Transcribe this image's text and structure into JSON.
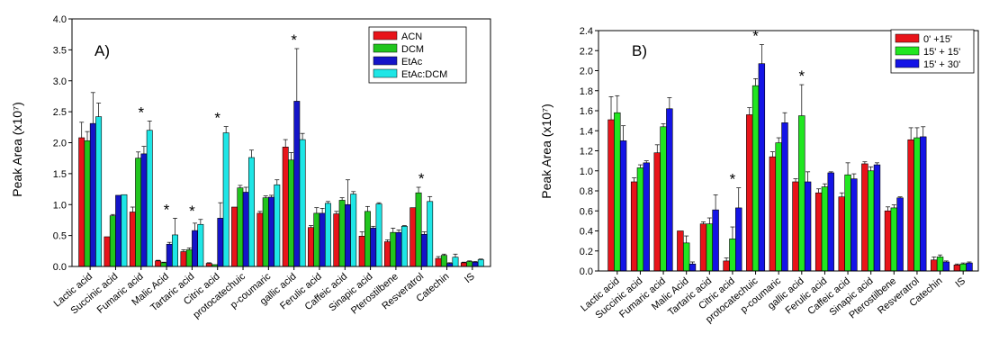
{
  "chart_data": [
    {
      "type": "bar",
      "title": "A)",
      "ylabel": "Peak Area (x10⁷)",
      "xlabel": "",
      "ylim": [
        0,
        4.0
      ],
      "yticks": [
        "0.0",
        "0.5",
        "1.0",
        "1.5",
        "2.0",
        "2.5",
        "3.0",
        "3.5",
        "4.0"
      ],
      "grid": false,
      "legend_position": "top-right",
      "categories": [
        "Lactic acid",
        "Succinic acid",
        "Fumaric acid",
        "Malic Acid",
        "Tartaric acid",
        "Citric acid",
        "protocatechuic",
        "p-coumaric",
        "gallic acid",
        "Ferulic acid",
        "Caffeic acid",
        "Sinapic acid",
        "Pterostilbene",
        "Resveratrol",
        "Catechin",
        "IS"
      ],
      "series": [
        {
          "name": "ACN",
          "color": "#e8141a",
          "values": [
            2.08,
            0.48,
            0.88,
            0.09,
            0.24,
            0.05,
            0.96,
            0.86,
            1.93,
            0.63,
            0.85,
            0.49,
            0.4,
            0.95,
            0.13,
            0.06
          ],
          "errors": [
            0.25,
            0,
            0.08,
            0.01,
            0.03,
            0.01,
            0,
            0.03,
            0.12,
            0.03,
            0.04,
            0.07,
            0.03,
            0,
            0.03,
            0.01
          ]
        },
        {
          "name": "DCM",
          "color": "#21c51e",
          "values": [
            2.03,
            0.82,
            1.75,
            0.06,
            0.27,
            0.03,
            1.27,
            1.11,
            1.72,
            0.86,
            1.07,
            0.89,
            0.55,
            1.19,
            0.18,
            0.08
          ],
          "errors": [
            0.15,
            0.02,
            0.1,
            0.01,
            0.03,
            0,
            0.04,
            0.03,
            0.12,
            0.09,
            0.04,
            0.08,
            0.07,
            0.09,
            0.02,
            0.01
          ]
        },
        {
          "name": "EtAc",
          "color": "#1414c8",
          "values": [
            2.31,
            1.15,
            1.82,
            0.36,
            0.58,
            0.78,
            1.2,
            1.12,
            2.67,
            0.86,
            1.0,
            0.62,
            0.55,
            0.52,
            0.05,
            0.07
          ],
          "errors": [
            0.5,
            0,
            0.12,
            0.03,
            0.12,
            0.25,
            0.08,
            0.03,
            0.85,
            0.08,
            0.4,
            0.03,
            0.04,
            0.04,
            0.01,
            0.01
          ]
        },
        {
          "name": "EtAc:DCM",
          "color": "#1ee6e6",
          "values": [
            2.42,
            1.16,
            2.2,
            0.51,
            0.68,
            2.16,
            1.76,
            1.32,
            2.05,
            1.02,
            1.17,
            1.01,
            0.65,
            1.05,
            0.15,
            0.11
          ],
          "errors": [
            0.22,
            0,
            0.15,
            0.27,
            0.08,
            0.1,
            0.12,
            0.08,
            0.1,
            0.03,
            0.04,
            0.02,
            0.01,
            0.08,
            0.05,
            0.01
          ]
        }
      ],
      "annotations": [
        {
          "category": "Fumaric acid",
          "text": "*"
        },
        {
          "category": "Tartaric acid",
          "text": "*"
        },
        {
          "category": "Citric acid",
          "text": "*"
        },
        {
          "category": "gallic acid",
          "text": "*"
        },
        {
          "category": "Resveratrol",
          "text": "*"
        },
        {
          "category": "Malic Acid",
          "text": "*"
        }
      ]
    },
    {
      "type": "bar",
      "title": "B)",
      "ylabel": "Peak Area (x10⁷)",
      "xlabel": "",
      "ylim": [
        0,
        2.4
      ],
      "yticks": [
        "0.0",
        "0.2",
        "0.4",
        "0.6",
        "0.8",
        "1.0",
        "1.2",
        "1.4",
        "1.6",
        "1.8",
        "2.0",
        "2.2",
        "2.4"
      ],
      "grid": false,
      "legend_position": "top-right",
      "categories": [
        "Lactic acid",
        "Succinic acid",
        "Fumaric acid",
        "Malic Acid",
        "Tartaric acid",
        "Citric acid",
        "protocatechuic",
        "p-coumaric",
        "gallic acid",
        "Ferulic acid",
        "Caffeic acid",
        "Sinapic acid",
        "Pterostilbene",
        "Resveratrol",
        "Catechin",
        "IS"
      ],
      "series": [
        {
          "name": "0' +15'",
          "color": "#e8141a",
          "values": [
            1.51,
            0.89,
            1.18,
            0.4,
            0.47,
            0.1,
            1.56,
            1.14,
            0.89,
            0.78,
            0.74,
            1.07,
            0.6,
            1.31,
            0.11,
            0.06
          ],
          "errors": [
            0.23,
            0.04,
            0.08,
            0,
            0.02,
            0.03,
            0.07,
            0.05,
            0.03,
            0.04,
            0.04,
            0.02,
            0.04,
            0.12,
            0.03,
            0.01
          ]
        },
        {
          "name": "15' + 15'",
          "color": "#21e621",
          "values": [
            1.58,
            1.03,
            1.44,
            0.28,
            0.47,
            0.32,
            1.85,
            1.28,
            1.55,
            0.84,
            0.96,
            1.0,
            0.63,
            1.33,
            0.14,
            0.07
          ],
          "errors": [
            0.17,
            0.03,
            0.03,
            0.07,
            0.06,
            0.12,
            0.07,
            0.05,
            0.31,
            0.03,
            0.12,
            0.04,
            0.03,
            0.1,
            0.02,
            0.01
          ]
        },
        {
          "name": "15' + 30'",
          "color": "#1414e6",
          "values": [
            1.3,
            1.08,
            1.62,
            0.07,
            0.61,
            0.63,
            2.07,
            1.48,
            0.89,
            0.98,
            0.92,
            1.06,
            0.73,
            1.34,
            0.09,
            0.08
          ],
          "errors": [
            0.15,
            0.02,
            0.11,
            0.02,
            0.15,
            0.2,
            0.19,
            0.1,
            0.1,
            0.01,
            0.05,
            0.02,
            0.01,
            0.1,
            0.01,
            0.01
          ]
        }
      ],
      "annotations": [
        {
          "category": "protocatechuic",
          "text": "*"
        },
        {
          "category": "gallic acid",
          "text": "*"
        },
        {
          "category": "Citric acid",
          "text": "*"
        }
      ]
    }
  ]
}
